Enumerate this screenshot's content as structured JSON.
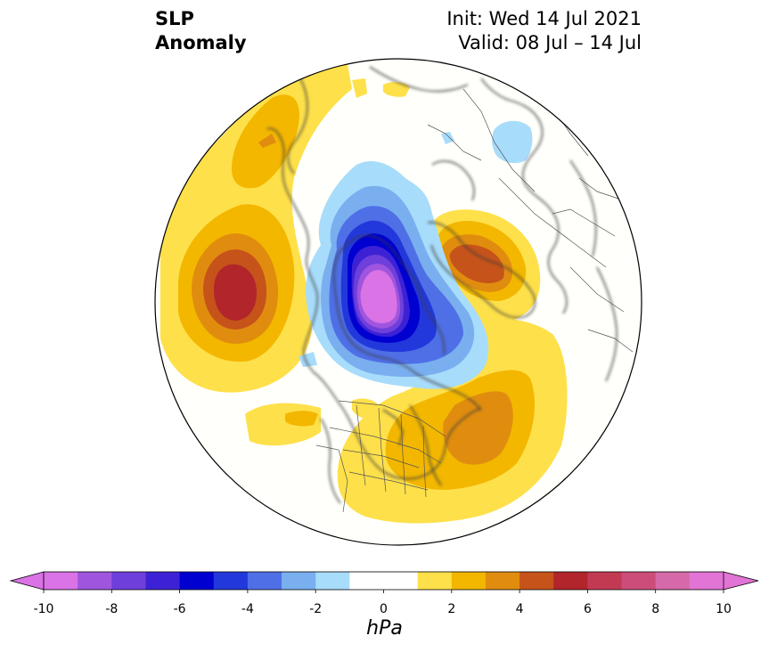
{
  "title": {
    "left_line1": "SLP",
    "left_line2": "Anomaly",
    "right_line1": "Init: Wed 14 Jul 2021",
    "right_line2": "Valid: 08 Jul – 14 Jul"
  },
  "colorbar": {
    "unit": "hPa",
    "tick_labels": [
      "-10",
      "-8",
      "-6",
      "-4",
      "-2",
      "0",
      "2",
      "4",
      "6",
      "8",
      "10"
    ],
    "colors": [
      "#d973e6",
      "#9f55de",
      "#6f3fdb",
      "#3d22d5",
      "#0000d1",
      "#2338db",
      "#4f6fe6",
      "#79afef",
      "#a8dcfb",
      "#ffffff",
      "#ffffff",
      "#fee04a",
      "#f3b700",
      "#e08d0f",
      "#c6531a",
      "#b2252a",
      "#c23a52",
      "#cc4d7a",
      "#d66aa8",
      "#e174d4"
    ],
    "extend_low_color": "#d973e6",
    "extend_high_color": "#e174d4"
  },
  "map": {
    "projection": "north polar stereographic",
    "features": [
      {
        "name": "arctic-low",
        "value_hpa": -9
      },
      {
        "name": "north-pacific-high",
        "value_hpa": 6
      },
      {
        "name": "northeast-atlantic-high",
        "value_hpa": 5
      },
      {
        "name": "northwest-atlantic-high",
        "value_hpa": 4
      }
    ]
  }
}
